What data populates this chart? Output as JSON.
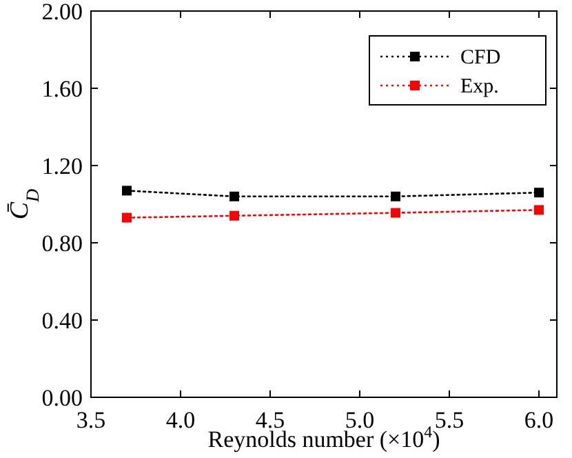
{
  "chart_data": {
    "type": "line",
    "xlabel": "Reynolds number (×10$^{4}$)",
    "ylabel": "C̄$_{D}$",
    "x": [
      3.7,
      4.3,
      5.2,
      6.0
    ],
    "series": [
      {
        "name": "CFD",
        "color": "#000000",
        "values": [
          1.07,
          1.04,
          1.04,
          1.06
        ]
      },
      {
        "name": "Exp.",
        "color": "#ff0000",
        "values": [
          0.93,
          0.94,
          0.955,
          0.97
        ]
      }
    ],
    "xlim": [
      3.5,
      6.1
    ],
    "xticks": [
      {
        "value": 3.5,
        "label": "3.5"
      },
      {
        "value": 4,
        "label": "4.0"
      },
      {
        "value": 4.5,
        "label": "4.5"
      },
      {
        "value": 5,
        "label": "5.0"
      },
      {
        "value": 5.5,
        "label": "5.5"
      },
      {
        "value": 6,
        "label": "6.0"
      }
    ],
    "ylim": [
      0,
      2
    ],
    "yticks": [
      {
        "value": 0,
        "label": "0.00"
      },
      {
        "value": 0.4,
        "label": "0.40"
      },
      {
        "value": 0.8,
        "label": "0.80"
      },
      {
        "value": 1.2,
        "label": "1.20"
      },
      {
        "value": 1.6,
        "label": "1.60"
      },
      {
        "value": 2,
        "label": "2.00"
      }
    ],
    "legend": "top right",
    "marker": "square",
    "line_style": "dotted",
    "grid": false
  }
}
